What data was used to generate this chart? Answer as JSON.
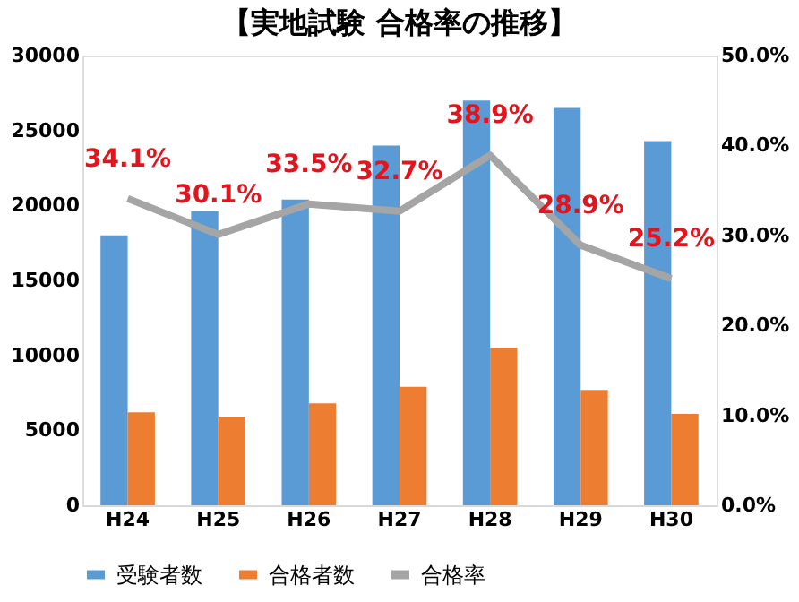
{
  "chart_data": {
    "type": "bar",
    "title": "【実地試験 合格率の推移】",
    "categories": [
      "H24",
      "H25",
      "H26",
      "H27",
      "H28",
      "H29",
      "H30"
    ],
    "series": [
      {
        "name": "受験者数",
        "color": "#5b9bd5",
        "values": [
          18000,
          19600,
          20400,
          24000,
          27000,
          26500,
          24300
        ]
      },
      {
        "name": "合格者数",
        "color": "#ed7d31",
        "values": [
          6200,
          5900,
          6800,
          7900,
          10500,
          7700,
          6100
        ]
      },
      {
        "name": "合格率",
        "type": "line",
        "axis": "y2",
        "color": "#a5a5a5",
        "values": [
          34.1,
          30.1,
          33.5,
          32.7,
          38.9,
          28.9,
          25.2
        ],
        "value_labels": [
          "34.1%",
          "30.1%",
          "33.5%",
          "32.7%",
          "38.9%",
          "28.9%",
          "25.2%"
        ]
      }
    ],
    "ylim": [
      0,
      30000
    ],
    "yticks": [
      0,
      5000,
      10000,
      15000,
      20000,
      25000,
      30000
    ],
    "y2lim": [
      0,
      50
    ],
    "y2ticks": [
      {
        "value": 0,
        "label": "0.0%"
      },
      {
        "value": 10,
        "label": "10.0%"
      },
      {
        "value": 20,
        "label": "20.0%"
      },
      {
        "value": 30,
        "label": "30.0%"
      },
      {
        "value": 40,
        "label": "40.0%"
      },
      {
        "value": 50,
        "label": "50.0%"
      }
    ],
    "legend": "bottom",
    "grid": false
  }
}
